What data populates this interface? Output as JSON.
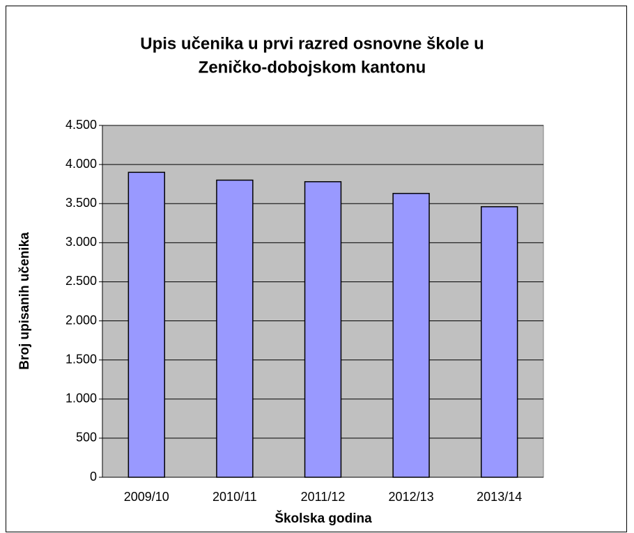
{
  "chart_data": {
    "type": "bar",
    "title": [
      "Upis učenika u prvi razred osnovne škole u",
      "Zeničko-dobojskom  kantonu"
    ],
    "x_label": "Školska godina",
    "y_label": "Broj upisanih učenika",
    "categories": [
      "2009/10",
      "2010/11",
      "2011/12",
      "2012/13",
      "2013/14"
    ],
    "values": [
      3900,
      3800,
      3780,
      3630,
      3460
    ],
    "color": "#9999ff",
    "plot_background": "#c0c0c0",
    "ylim": [
      0,
      4500
    ],
    "yticks": [
      0,
      500,
      {
        "value": 1000,
        "label": "1.000"
      },
      {
        "value": 1500,
        "label": "1.500"
      },
      {
        "value": 2000,
        "label": "2.000"
      },
      {
        "value": 2500,
        "label": "2.500"
      },
      {
        "value": 3000,
        "label": "3.000"
      },
      {
        "value": 3500,
        "label": "3.500"
      },
      {
        "value": 4000,
        "label": "4.000"
      },
      {
        "value": 4500,
        "label": "4.500"
      }
    ],
    "grid": true
  }
}
